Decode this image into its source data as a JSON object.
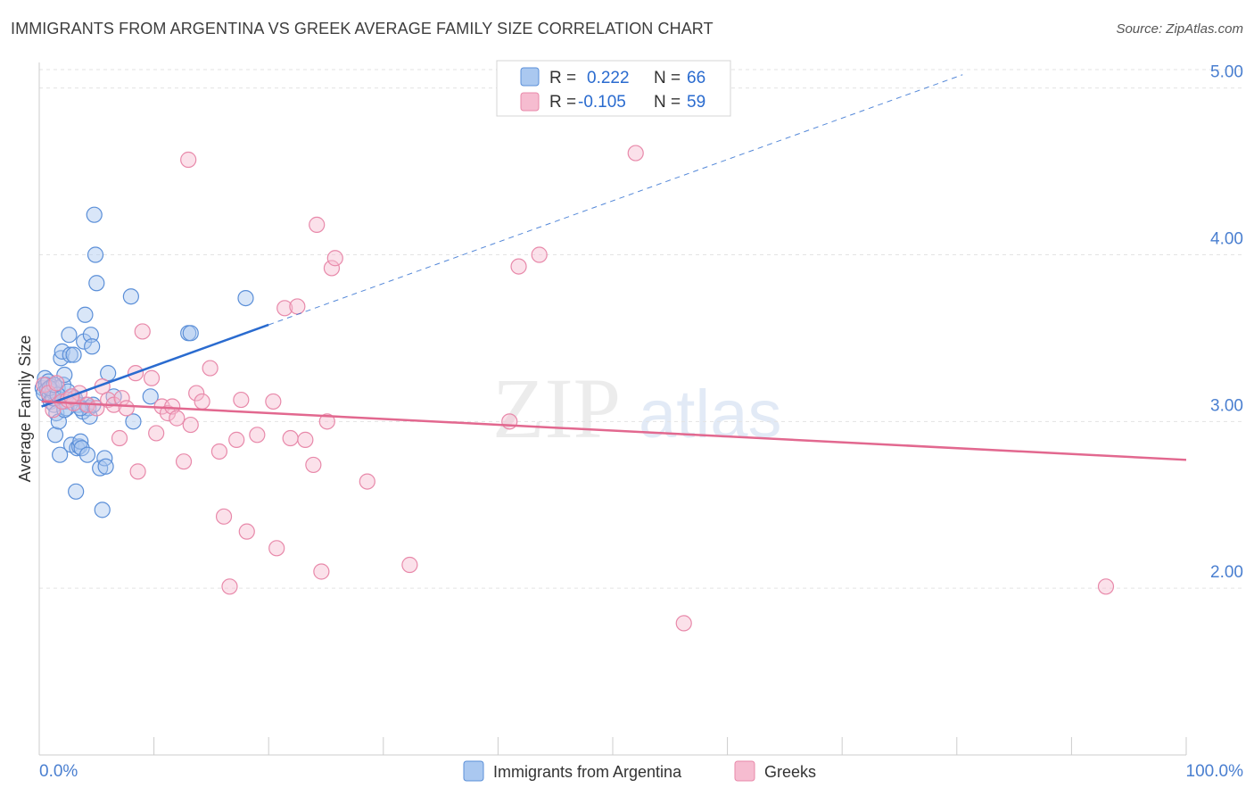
{
  "header": {
    "title": "IMMIGRANTS FROM ARGENTINA VS GREEK AVERAGE FAMILY SIZE CORRELATION CHART",
    "source": "Source: ZipAtlas.com"
  },
  "watermark": {
    "part1": "ZIP",
    "part2": "atlas"
  },
  "colors": {
    "blue_fill": "#aac8f0",
    "blue_stroke": "#5b8fd8",
    "blue_line": "#2a6bcf",
    "pink_fill": "#f6bcd0",
    "pink_stroke": "#e889aa",
    "pink_line": "#e2688f",
    "axis_text": "#4a7fd0",
    "grid": "#e3e3e3"
  },
  "legend_top": {
    "rows": [
      {
        "r_label": "R =",
        "r_value": "0.222",
        "n_label": "N =",
        "n_value": "66"
      },
      {
        "r_label": "R =",
        "r_value": "-0.105",
        "n_label": "N =",
        "n_value": "59"
      }
    ]
  },
  "chart_data": {
    "type": "scatter",
    "title": "IMMIGRANTS FROM ARGENTINA VS GREEK AVERAGE FAMILY SIZE CORRELATION CHART",
    "xlabel": "",
    "ylabel": "Average Family Size",
    "xlim": [
      0,
      100
    ],
    "ylim": [
      1.0,
      5.1
    ],
    "x_tick_labels": [
      "0.0%",
      "100.0%"
    ],
    "y_ticks": [
      2.0,
      3.0,
      4.0,
      5.0
    ],
    "y_tick_labels": [
      "2.00",
      "3.00",
      "4.00",
      "5.00"
    ],
    "grid": true,
    "legend_position": "top-center",
    "series": [
      {
        "name": "Immigrants from Argentina",
        "color": "#5b8fd8",
        "R": 0.222,
        "N": 66,
        "trend": {
          "x0": 0.2,
          "y0": 3.09,
          "x1": 20.0,
          "y1": 3.58,
          "x_dash_end": 80.5,
          "y_dash_end": 5.08
        },
        "points": [
          [
            0.3,
            3.2
          ],
          [
            0.4,
            3.17
          ],
          [
            0.5,
            3.26
          ],
          [
            0.6,
            3.22
          ],
          [
            0.7,
            3.19
          ],
          [
            0.8,
            3.24
          ],
          [
            0.9,
            3.15
          ],
          [
            1.0,
            3.12
          ],
          [
            1.1,
            3.21
          ],
          [
            1.2,
            3.18
          ],
          [
            1.3,
            3.1
          ],
          [
            1.4,
            2.92
          ],
          [
            1.5,
            3.05
          ],
          [
            1.6,
            3.2
          ],
          [
            1.7,
            3.0
          ],
          [
            1.8,
            2.8
          ],
          [
            1.9,
            3.38
          ],
          [
            2.0,
            3.42
          ],
          [
            2.1,
            3.22
          ],
          [
            2.2,
            3.28
          ],
          [
            2.3,
            3.12
          ],
          [
            2.4,
            3.08
          ],
          [
            2.6,
            3.52
          ],
          [
            2.7,
            3.4
          ],
          [
            2.8,
            2.86
          ],
          [
            2.9,
            3.15
          ],
          [
            3.0,
            3.4
          ],
          [
            3.2,
            2.58
          ],
          [
            3.3,
            2.84
          ],
          [
            3.4,
            3.1
          ],
          [
            3.5,
            2.85
          ],
          [
            3.6,
            2.88
          ],
          [
            3.7,
            2.84
          ],
          [
            3.8,
            3.06
          ],
          [
            3.9,
            3.48
          ],
          [
            4.0,
            3.64
          ],
          [
            4.1,
            3.1
          ],
          [
            4.2,
            2.8
          ],
          [
            4.3,
            3.08
          ],
          [
            4.4,
            3.03
          ],
          [
            4.5,
            3.52
          ],
          [
            4.6,
            3.45
          ],
          [
            4.8,
            4.24
          ],
          [
            4.9,
            4.0
          ],
          [
            5.0,
            3.83
          ],
          [
            5.3,
            2.72
          ],
          [
            5.5,
            2.47
          ],
          [
            5.7,
            2.78
          ],
          [
            5.8,
            2.73
          ],
          [
            6.0,
            3.29
          ],
          [
            6.5,
            3.15
          ],
          [
            8.0,
            3.75
          ],
          [
            8.2,
            3.0
          ],
          [
            9.7,
            3.15
          ],
          [
            13.0,
            3.53
          ],
          [
            13.2,
            3.53
          ],
          [
            18.0,
            3.74
          ],
          [
            1.2,
            3.14
          ],
          [
            2.5,
            3.18
          ],
          [
            3.1,
            3.14
          ],
          [
            4.7,
            3.1
          ],
          [
            0.9,
            3.2
          ],
          [
            2.2,
            3.07
          ],
          [
            1.6,
            3.16
          ],
          [
            3.6,
            3.08
          ],
          [
            1.3,
            3.22
          ]
        ]
      },
      {
        "name": "Greeks",
        "color": "#e889aa",
        "R": -0.105,
        "N": 59,
        "trend": {
          "x0": 0.2,
          "y0": 3.12,
          "x1": 100.0,
          "y1": 2.77
        },
        "points": [
          [
            0.4,
            3.22
          ],
          [
            0.8,
            3.17
          ],
          [
            1.2,
            3.07
          ],
          [
            1.5,
            3.23
          ],
          [
            2.0,
            3.12
          ],
          [
            2.5,
            3.13
          ],
          [
            3.0,
            3.11
          ],
          [
            3.5,
            3.17
          ],
          [
            4.2,
            3.1
          ],
          [
            5.0,
            3.08
          ],
          [
            5.5,
            3.21
          ],
          [
            6.0,
            3.13
          ],
          [
            6.5,
            3.1
          ],
          [
            7.0,
            2.9
          ],
          [
            7.2,
            3.14
          ],
          [
            7.6,
            3.08
          ],
          [
            8.4,
            3.29
          ],
          [
            8.6,
            2.7
          ],
          [
            9.0,
            3.54
          ],
          [
            9.8,
            3.26
          ],
          [
            10.2,
            2.93
          ],
          [
            10.7,
            3.09
          ],
          [
            11.2,
            3.05
          ],
          [
            11.6,
            3.09
          ],
          [
            12.0,
            3.02
          ],
          [
            12.6,
            2.76
          ],
          [
            13.0,
            4.57
          ],
          [
            13.2,
            2.98
          ],
          [
            13.7,
            3.17
          ],
          [
            14.2,
            3.12
          ],
          [
            14.9,
            3.32
          ],
          [
            15.7,
            2.82
          ],
          [
            16.1,
            2.43
          ],
          [
            16.6,
            2.01
          ],
          [
            17.2,
            2.89
          ],
          [
            17.6,
            3.13
          ],
          [
            18.1,
            2.34
          ],
          [
            19.0,
            2.92
          ],
          [
            20.4,
            3.12
          ],
          [
            20.7,
            2.24
          ],
          [
            21.4,
            3.68
          ],
          [
            21.9,
            2.9
          ],
          [
            22.5,
            3.69
          ],
          [
            23.2,
            2.89
          ],
          [
            23.9,
            2.74
          ],
          [
            24.2,
            4.18
          ],
          [
            24.6,
            2.1
          ],
          [
            25.1,
            3.0
          ],
          [
            25.5,
            3.92
          ],
          [
            25.8,
            3.98
          ],
          [
            28.6,
            2.64
          ],
          [
            32.3,
            2.14
          ],
          [
            41.0,
            3.0
          ],
          [
            41.8,
            3.93
          ],
          [
            43.6,
            4.0
          ],
          [
            52.0,
            4.61
          ],
          [
            56.2,
            1.79
          ],
          [
            93.0,
            2.01
          ],
          [
            2.8,
            3.15
          ]
        ]
      }
    ]
  },
  "legend_bottom": {
    "items": [
      {
        "label": "Immigrants from Argentina"
      },
      {
        "label": "Greeks"
      }
    ]
  }
}
